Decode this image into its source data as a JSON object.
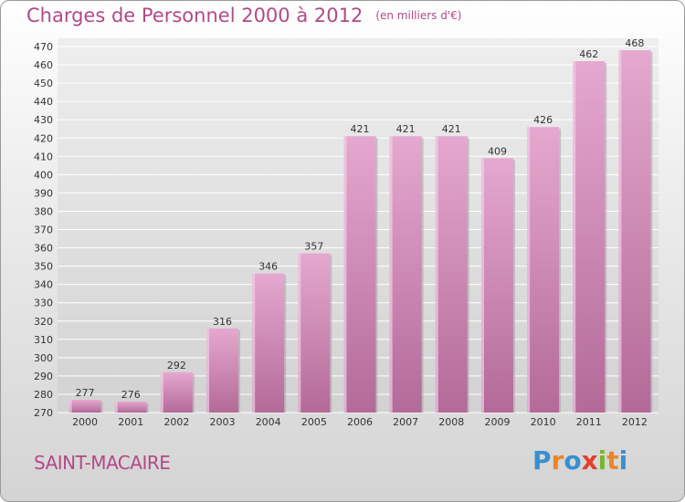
{
  "header": {
    "title": "Charges de Personnel 2000 à 2012",
    "unit": "(en milliers d'€)"
  },
  "footer": {
    "commune": "SAINT-MACAIRE",
    "logo_text": "Proxiti",
    "logo_letters": [
      {
        "ch": "P",
        "color": "#3a8fd0"
      },
      {
        "ch": "r",
        "color": "#e8862c"
      },
      {
        "ch": "o",
        "color": "#3a8fd0"
      },
      {
        "ch": "x",
        "color": "#e2402c"
      },
      {
        "ch": "i",
        "color": "#77b82a"
      },
      {
        "ch": "t",
        "color": "#e8862c"
      },
      {
        "ch": "i",
        "color": "#3a8fd0"
      }
    ]
  },
  "colors": {
    "bar_light": "#e5a8cf",
    "bar_dark": "#b36a98",
    "title": "#b24a86",
    "grid": "#ffffff"
  },
  "chart_data": {
    "type": "bar",
    "title": "Charges de Personnel 2000 à 2012",
    "subtitle": "(en milliers d'€)",
    "categories": [
      "2000",
      "2001",
      "2002",
      "2003",
      "2004",
      "2005",
      "2006",
      "2007",
      "2008",
      "2009",
      "2010",
      "2011",
      "2012"
    ],
    "values": [
      277,
      276,
      292,
      316,
      346,
      357,
      421,
      421,
      421,
      409,
      426,
      462,
      468
    ],
    "ylim": [
      270,
      470
    ],
    "yticks": [
      270,
      280,
      290,
      300,
      310,
      320,
      330,
      340,
      350,
      360,
      370,
      380,
      390,
      400,
      410,
      420,
      430,
      440,
      450,
      460,
      470
    ],
    "grid": true,
    "data_labels": true
  }
}
